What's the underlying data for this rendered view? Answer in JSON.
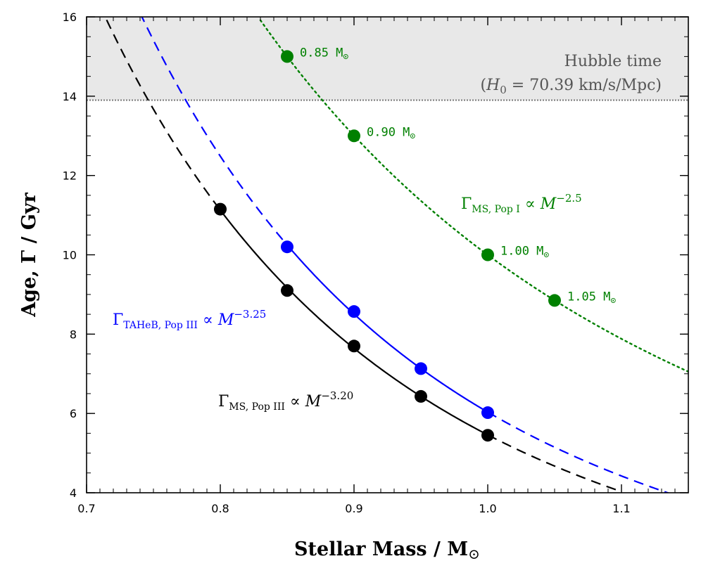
{
  "chart_data": {
    "type": "line",
    "xlabel": "Stellar Mass / M",
    "xlabel_symbol": "⊙",
    "ylabel": "Age, Γ / Gyr",
    "xlim": [
      0.7,
      1.15
    ],
    "ylim": [
      4,
      16
    ],
    "xticks": [
      0.7,
      0.8,
      0.9,
      1.0,
      1.1
    ],
    "xtick_labels": [
      "0.7",
      "0.8",
      "0.9",
      "1.0",
      "1.1"
    ],
    "yticks": [
      4,
      6,
      8,
      10,
      12,
      14,
      16
    ],
    "ytick_labels": [
      "4",
      "6",
      "8",
      "10",
      "12",
      "14",
      "16"
    ],
    "hubble": {
      "age": 13.9,
      "label": "Hubble time",
      "param_label": "(H0 = 70.39 km/s/Mpc)",
      "param_symbol": "H",
      "param_subscript": "0",
      "param_value": " = 70.39 km/s/Mpc)",
      "color": "#e8e8e8"
    },
    "series": [
      {
        "name": "MS Pop III",
        "color": "#000000",
        "style": "solid-in-range, dashed-outside",
        "points": [
          {
            "x": 0.8,
            "y": 11.15
          },
          {
            "x": 0.85,
            "y": 9.1
          },
          {
            "x": 0.9,
            "y": 7.7
          },
          {
            "x": 0.95,
            "y": 6.43
          },
          {
            "x": 1.0,
            "y": 5.45
          }
        ],
        "solid_range": [
          0.8,
          1.0
        ],
        "dash_range": [
          0.715,
          1.1
        ],
        "label": {
          "gamma": "Γ",
          "subscript": "MS, Pop III",
          "prop": "∝",
          "M": "M",
          "exponent": "−3.20"
        }
      },
      {
        "name": "TAHeB Pop III",
        "color": "#0000ff",
        "style": "solid-in-range, dashed-outside",
        "points": [
          {
            "x": 0.85,
            "y": 10.2
          },
          {
            "x": 0.9,
            "y": 8.57
          },
          {
            "x": 0.95,
            "y": 7.13
          },
          {
            "x": 1.0,
            "y": 6.02
          }
        ],
        "solid_range": [
          0.85,
          1.0
        ],
        "dash_range": [
          0.74,
          1.15
        ],
        "label": {
          "gamma": "Γ",
          "subscript": "TAHeB, Pop III",
          "prop": "∝",
          "M": "M",
          "exponent": "−3.25"
        }
      },
      {
        "name": "MS Pop I",
        "color": "#008000",
        "style": "dotted",
        "points": [
          {
            "x": 0.85,
            "y": 15.0,
            "label": "0.85 M",
            "symbol": "⊙"
          },
          {
            "x": 0.9,
            "y": 13.0,
            "label": "0.90 M",
            "symbol": "⊙"
          },
          {
            "x": 1.0,
            "y": 10.0,
            "label": "1.00 M",
            "symbol": "⊙"
          },
          {
            "x": 1.05,
            "y": 8.85,
            "label": "1.05 M",
            "symbol": "⊙"
          }
        ],
        "dot_range": [
          0.83,
          1.15
        ],
        "label": {
          "gamma": "Γ",
          "subscript": "MS,  Pop I",
          "prop": "∝",
          "M": "M",
          "exponent": "−2.5"
        }
      }
    ]
  }
}
